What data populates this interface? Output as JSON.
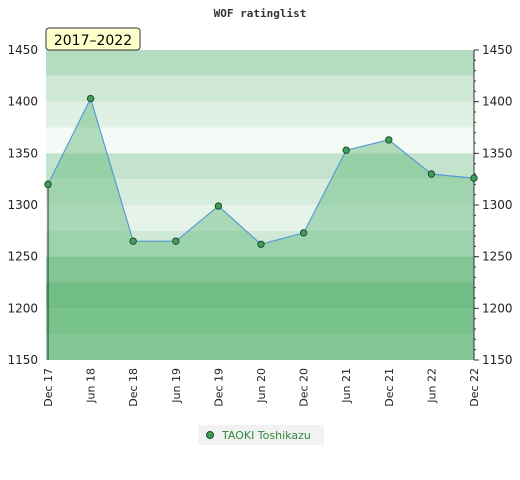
{
  "chart_data": {
    "type": "area",
    "title": "WOF ratinglist",
    "period_label": "2017–2022",
    "xlabel": "",
    "ylabel": "",
    "ylim": [
      1150,
      1450
    ],
    "yticks": [
      1150,
      1200,
      1250,
      1300,
      1350,
      1400,
      1450
    ],
    "x": [
      "Dec 17",
      "Jun 18",
      "Dec 18",
      "Jun 19",
      "Dec 19",
      "Jun 20",
      "Dec 20",
      "Jun 21",
      "Dec 21",
      "Jun 22",
      "Dec 22"
    ],
    "series": [
      {
        "name": "TAOKI Toshikazu",
        "values": [
          1320,
          1403,
          1265,
          1265,
          1299,
          1262,
          1273,
          1353,
          1363,
          1330,
          1326
        ]
      }
    ],
    "grid": true,
    "legend_position": "bottom-center",
    "colors": {
      "line": "#5b9bd5",
      "fill": "#8fcf9f",
      "marker": "#3f9f5a",
      "legend_text": "#2e8b3d",
      "period_bg": "#ffffcc"
    }
  }
}
